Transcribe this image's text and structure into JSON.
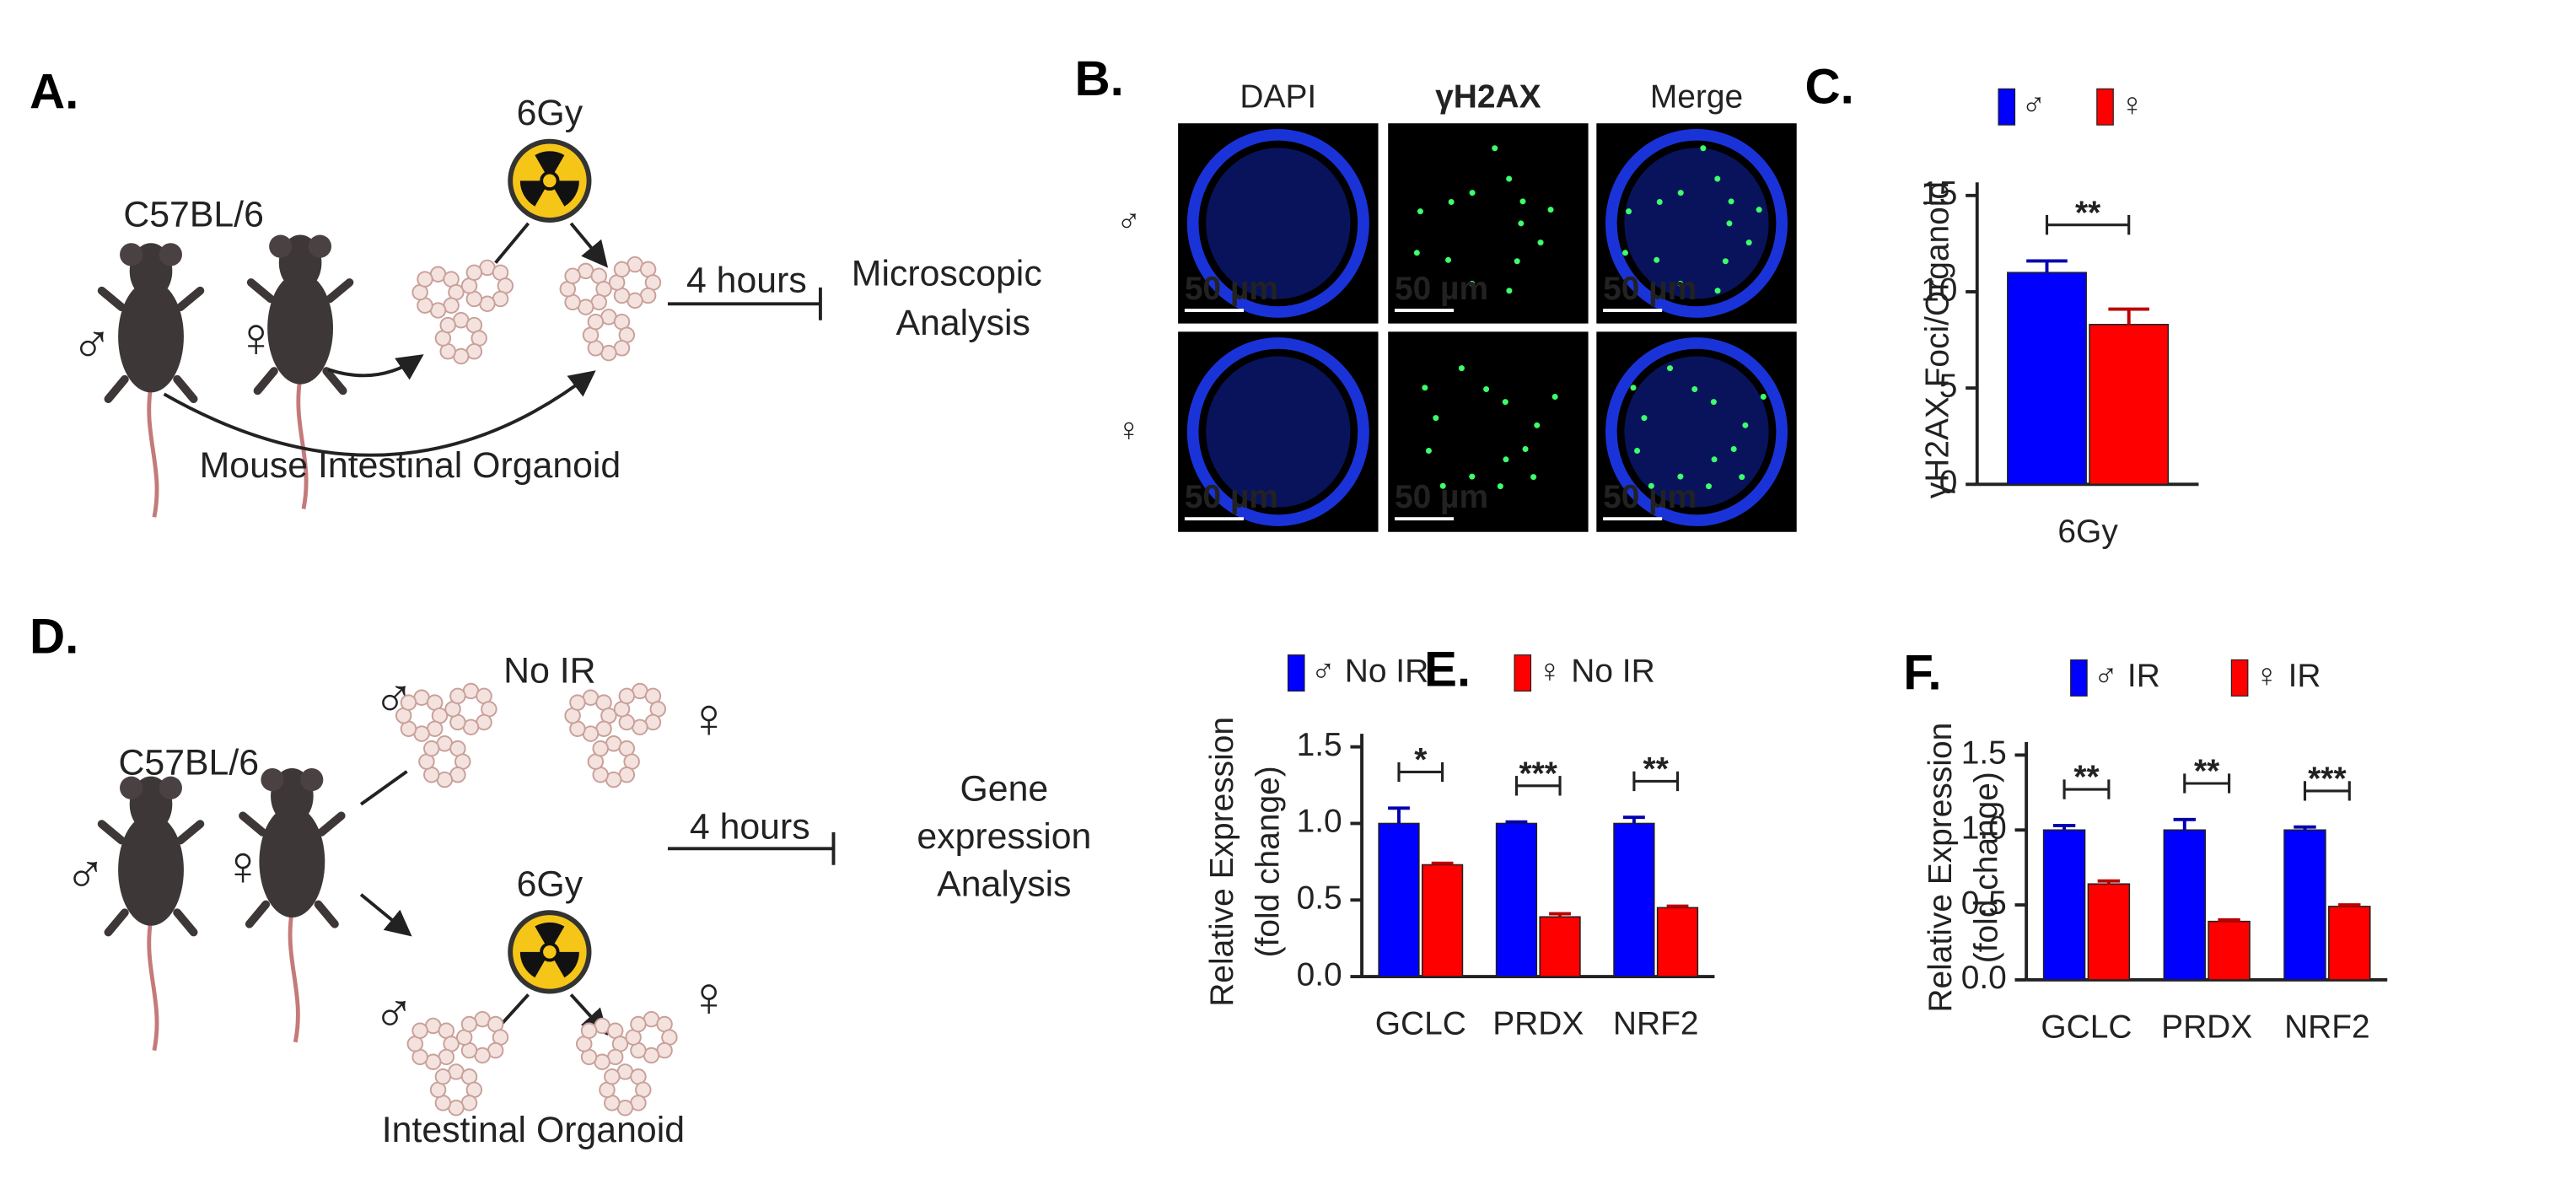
{
  "panel_a": {
    "label": "A.",
    "dose": "6Gy",
    "strain": "C57BL/6",
    "male": "♂",
    "female": "♀",
    "time": "4 hours",
    "analysis": [
      "Microscopic",
      "Analysis"
    ],
    "caption": "Mouse Intestinal Organoid"
  },
  "panel_b": {
    "label": "B.",
    "columns": [
      "DAPI",
      "γH2AX",
      "Merge"
    ],
    "rows": [
      "♂",
      "♀"
    ],
    "scale_bars": [
      [
        "50 µm",
        "50 µm",
        "50 µm"
      ],
      [
        "50 µm",
        "50 µm",
        "50 µm"
      ]
    ]
  },
  "panel_d": {
    "label": "D.",
    "control": "No IR",
    "dose": "6Gy",
    "strain": "C57BL/6",
    "male": "♂",
    "female": "♀",
    "top_male": "♂",
    "top_female": "♀",
    "bottom_male": "♂",
    "bottom_female": "♀",
    "time": "4 hours",
    "analysis": [
      "Gene",
      "expression",
      "Analysis"
    ],
    "caption": "Intestinal Organoid"
  },
  "chart_data": [
    {
      "type": "bar",
      "label": "C.",
      "ylabel": [
        "γH2AX Foci/Organoid"
      ],
      "categories": [
        "6Gy"
      ],
      "series": [
        {
          "name": "♂",
          "color": "#0000ff",
          "values": [
            11
          ],
          "errors": [
            0.6
          ]
        },
        {
          "name": "♀",
          "color": "#ff0000",
          "values": [
            8.3
          ],
          "errors": [
            0.8
          ]
        }
      ],
      "significance": [
        "**"
      ],
      "ylim": [
        0,
        15
      ],
      "yticks": [
        0,
        5,
        10,
        15
      ]
    },
    {
      "type": "bar",
      "label": "E.",
      "ylabel": [
        "Relative Expression",
        "(fold change)"
      ],
      "categories": [
        "GCLC",
        "PRDX",
        "NRF2"
      ],
      "series": [
        {
          "name": "♂ No IR",
          "color": "#0000ff",
          "values": [
            1.0,
            1.0,
            1.0
          ],
          "errors": [
            0.1,
            0.01,
            0.04
          ]
        },
        {
          "name": "♀ No IR",
          "color": "#ff0000",
          "values": [
            0.73,
            0.39,
            0.45
          ],
          "errors": [
            0.01,
            0.02,
            0.01
          ]
        }
      ],
      "significance": [
        "*",
        "***",
        "**"
      ],
      "ylim": [
        0,
        1.5
      ],
      "yticks": [
        {
          "value": 0,
          "label": "0.0"
        },
        {
          "value": 0.5,
          "label": "0.5"
        },
        {
          "value": 1,
          "label": "1.0"
        },
        {
          "value": 1.5,
          "label": "1.5"
        }
      ]
    },
    {
      "type": "bar",
      "label": "F.",
      "ylabel": [
        "Relative Expression",
        "(fold change)"
      ],
      "categories": [
        "GCLC",
        "PRDX",
        "NRF2"
      ],
      "series": [
        {
          "name": "♂ IR",
          "color": "#0000ff",
          "values": [
            1.0,
            1.0,
            1.0
          ],
          "errors": [
            0.03,
            0.07,
            0.02
          ]
        },
        {
          "name": "♀ IR",
          "color": "#ff0000",
          "values": [
            0.64,
            0.39,
            0.49
          ],
          "errors": [
            0.02,
            0.01,
            0.01
          ]
        }
      ],
      "significance": [
        "**",
        "**",
        "***"
      ],
      "ylim": [
        0,
        1.5
      ],
      "yticks": [
        {
          "value": 0,
          "label": "0.0"
        },
        {
          "value": 0.5,
          "label": "0.5"
        },
        {
          "value": 1,
          "label": "1.0"
        },
        {
          "value": 1.5,
          "label": "1.5"
        }
      ]
    }
  ]
}
